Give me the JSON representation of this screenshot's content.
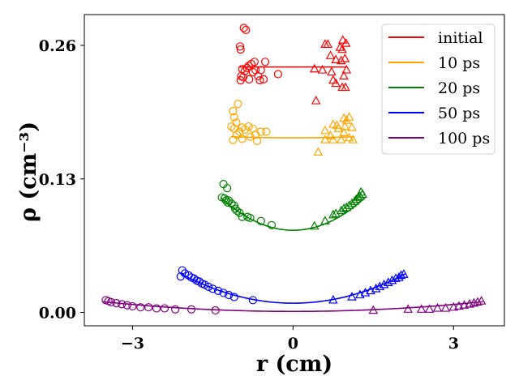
{
  "chart_data": {
    "type": "scatter",
    "xlabel": "r (cm)",
    "ylabel": "ρ (cm⁻³)",
    "xlim": [
      -3.9,
      3.95
    ],
    "ylim": [
      -0.013,
      0.29
    ],
    "x_ticks": [
      {
        "value": -3,
        "label": "−3"
      },
      {
        "value": 0,
        "label": "0"
      },
      {
        "value": 3,
        "label": "3"
      }
    ],
    "y_ticks": [
      {
        "value": 0.0,
        "label": "0.00"
      },
      {
        "value": 0.13,
        "label": "0.13"
      },
      {
        "value": 0.26,
        "label": "0.26"
      }
    ],
    "legend_position": "top-right",
    "series": [
      {
        "name": "initial",
        "color": "#ff0000",
        "fit": {
          "x0": -1.0,
          "x1": 1.0,
          "a": 0.0,
          "c": 0.239
        },
        "circles": [
          [
            -0.92,
            0.277
          ],
          [
            -0.88,
            0.275
          ],
          [
            -0.99,
            0.259
          ],
          [
            -0.98,
            0.256
          ],
          [
            -0.72,
            0.244
          ],
          [
            -0.78,
            0.242
          ],
          [
            -0.52,
            0.244
          ],
          [
            -0.83,
            0.24
          ],
          [
            -0.86,
            0.238
          ],
          [
            -0.95,
            0.237
          ],
          [
            -0.9,
            0.235
          ],
          [
            -0.7,
            0.236
          ],
          [
            -0.75,
            0.234
          ],
          [
            -0.6,
            0.236
          ],
          [
            -0.28,
            0.232
          ],
          [
            -0.65,
            0.23
          ],
          [
            -0.97,
            0.23
          ],
          [
            -0.93,
            0.229
          ],
          [
            -0.82,
            0.227
          ],
          [
            -0.55,
            0.227
          ],
          [
            -0.98,
            0.226
          ],
          [
            -0.62,
            0.226
          ]
        ],
        "triangles": [
          [
            0.6,
            0.261
          ],
          [
            0.65,
            0.261
          ],
          [
            0.93,
            0.265
          ],
          [
            0.99,
            0.262
          ],
          [
            0.88,
            0.258
          ],
          [
            0.92,
            0.256
          ],
          [
            0.7,
            0.25
          ],
          [
            0.8,
            0.246
          ],
          [
            0.97,
            0.247
          ],
          [
            0.9,
            0.245
          ],
          [
            0.4,
            0.237
          ],
          [
            0.55,
            0.236
          ],
          [
            1.0,
            0.236
          ],
          [
            0.72,
            0.234
          ],
          [
            0.95,
            0.23
          ],
          [
            0.75,
            0.226
          ],
          [
            0.8,
            0.223
          ],
          [
            0.92,
            0.219
          ],
          [
            0.98,
            0.219
          ],
          [
            0.43,
            0.206
          ]
        ]
      },
      {
        "name": "10 ps",
        "color": "#ffa500",
        "fit": {
          "x0": -1.15,
          "x1": 1.15,
          "a": 0.0008,
          "c": 0.17
        },
        "circles": [
          [
            -1.03,
            0.203
          ],
          [
            -1.12,
            0.196
          ],
          [
            -1.1,
            0.19
          ],
          [
            -1.06,
            0.185
          ],
          [
            -1.15,
            0.181
          ],
          [
            -0.95,
            0.18
          ],
          [
            -0.83,
            0.181
          ],
          [
            -1.1,
            0.179
          ],
          [
            -0.9,
            0.178
          ],
          [
            -0.75,
            0.179
          ],
          [
            -1.0,
            0.176
          ],
          [
            -0.6,
            0.176
          ],
          [
            -0.5,
            0.176
          ],
          [
            -1.05,
            0.173
          ],
          [
            -0.7,
            0.173
          ],
          [
            -0.8,
            0.171
          ],
          [
            -0.95,
            0.169
          ],
          [
            -1.12,
            0.168
          ],
          [
            -0.67,
            0.167
          ]
        ],
        "triangles": [
          [
            0.95,
            0.189
          ],
          [
            1.05,
            0.19
          ],
          [
            1.0,
            0.187
          ],
          [
            0.75,
            0.183
          ],
          [
            0.82,
            0.182
          ],
          [
            0.97,
            0.181
          ],
          [
            1.1,
            0.18
          ],
          [
            0.85,
            0.179
          ],
          [
            0.6,
            0.177
          ],
          [
            0.95,
            0.175
          ],
          [
            0.7,
            0.172
          ],
          [
            1.05,
            0.17
          ],
          [
            0.9,
            0.168
          ],
          [
            0.6,
            0.168
          ],
          [
            0.75,
            0.168
          ],
          [
            1.12,
            0.168
          ],
          [
            0.47,
            0.156
          ]
        ]
      },
      {
        "name": "20 ps",
        "color": "#008000",
        "fit": {
          "x0": -1.35,
          "x1": 1.35,
          "a": 0.0175,
          "c": 0.08
        },
        "circles": [
          [
            -1.3,
            0.125
          ],
          [
            -1.23,
            0.121
          ],
          [
            -1.33,
            0.112
          ],
          [
            -1.28,
            0.111
          ],
          [
            -1.25,
            0.109
          ],
          [
            -1.2,
            0.109
          ],
          [
            -1.22,
            0.107
          ],
          [
            -1.15,
            0.106
          ],
          [
            -1.1,
            0.104
          ],
          [
            -1.08,
            0.101
          ],
          [
            -1.05,
            0.099
          ],
          [
            -1.0,
            0.097
          ],
          [
            -0.95,
            0.093
          ],
          [
            -0.85,
            0.093
          ],
          [
            -0.8,
            0.092
          ],
          [
            -0.6,
            0.089
          ],
          [
            -0.4,
            0.085
          ]
        ],
        "triangles": [
          [
            1.27,
            0.117
          ],
          [
            1.3,
            0.115
          ],
          [
            1.25,
            0.113
          ],
          [
            1.22,
            0.112
          ],
          [
            1.18,
            0.11
          ],
          [
            1.15,
            0.108
          ],
          [
            1.1,
            0.106
          ],
          [
            1.05,
            0.104
          ],
          [
            1.0,
            0.102
          ],
          [
            0.95,
            0.101
          ],
          [
            0.9,
            0.099
          ],
          [
            0.8,
            0.096
          ],
          [
            0.75,
            0.095
          ],
          [
            0.6,
            0.089
          ],
          [
            0.4,
            0.084
          ]
        ]
      },
      {
        "name": "50 ps",
        "color": "#0000ff",
        "fit": {
          "x0": -2.1,
          "x1": 2.1,
          "a": 0.0065,
          "c": 0.009
        },
        "circles": [
          [
            -2.07,
            0.041
          ],
          [
            -2.02,
            0.038
          ],
          [
            -2.1,
            0.035
          ],
          [
            -1.95,
            0.036
          ],
          [
            -1.9,
            0.034
          ],
          [
            -1.85,
            0.033
          ],
          [
            -1.8,
            0.031
          ],
          [
            -1.75,
            0.03
          ],
          [
            -1.7,
            0.028
          ],
          [
            -1.65,
            0.027
          ],
          [
            -1.58,
            0.025
          ],
          [
            -1.5,
            0.023
          ],
          [
            -1.4,
            0.021
          ],
          [
            -1.3,
            0.019
          ],
          [
            -1.2,
            0.017
          ],
          [
            -1.1,
            0.015
          ],
          [
            -0.75,
            0.012
          ]
        ],
        "triangles": [
          [
            2.07,
            0.037
          ],
          [
            2.02,
            0.036
          ],
          [
            1.98,
            0.034
          ],
          [
            1.92,
            0.033
          ],
          [
            1.85,
            0.031
          ],
          [
            1.78,
            0.029
          ],
          [
            1.7,
            0.027
          ],
          [
            1.62,
            0.025
          ],
          [
            1.55,
            0.023
          ],
          [
            1.45,
            0.021
          ],
          [
            1.35,
            0.019
          ],
          [
            1.25,
            0.017
          ],
          [
            1.1,
            0.015
          ],
          [
            0.75,
            0.012
          ]
        ]
      },
      {
        "name": "100 ps",
        "color": "#800080",
        "fit": {
          "x0": -3.55,
          "x1": 3.55,
          "a": 0.00075,
          "c": 0.001
        },
        "circles": [
          [
            -3.5,
            0.012
          ],
          [
            -3.45,
            0.011
          ],
          [
            -3.4,
            0.01
          ],
          [
            -3.3,
            0.009
          ],
          [
            -3.2,
            0.008
          ],
          [
            -3.1,
            0.007
          ],
          [
            -3.0,
            0.006
          ],
          [
            -2.85,
            0.005
          ],
          [
            -2.7,
            0.005
          ],
          [
            -2.55,
            0.004
          ],
          [
            -2.4,
            0.004
          ],
          [
            -2.2,
            0.003
          ],
          [
            -1.9,
            0.003
          ],
          [
            -1.45,
            0.002
          ]
        ],
        "triangles": [
          [
            3.52,
            0.011
          ],
          [
            3.45,
            0.01
          ],
          [
            3.38,
            0.009
          ],
          [
            3.3,
            0.008
          ],
          [
            3.2,
            0.007
          ],
          [
            3.1,
            0.006
          ],
          [
            3.0,
            0.005
          ],
          [
            2.85,
            0.004
          ],
          [
            2.7,
            0.004
          ],
          [
            2.55,
            0.003
          ],
          [
            2.4,
            0.003
          ],
          [
            2.15,
            0.003
          ],
          [
            1.5,
            0.002
          ]
        ]
      }
    ]
  }
}
